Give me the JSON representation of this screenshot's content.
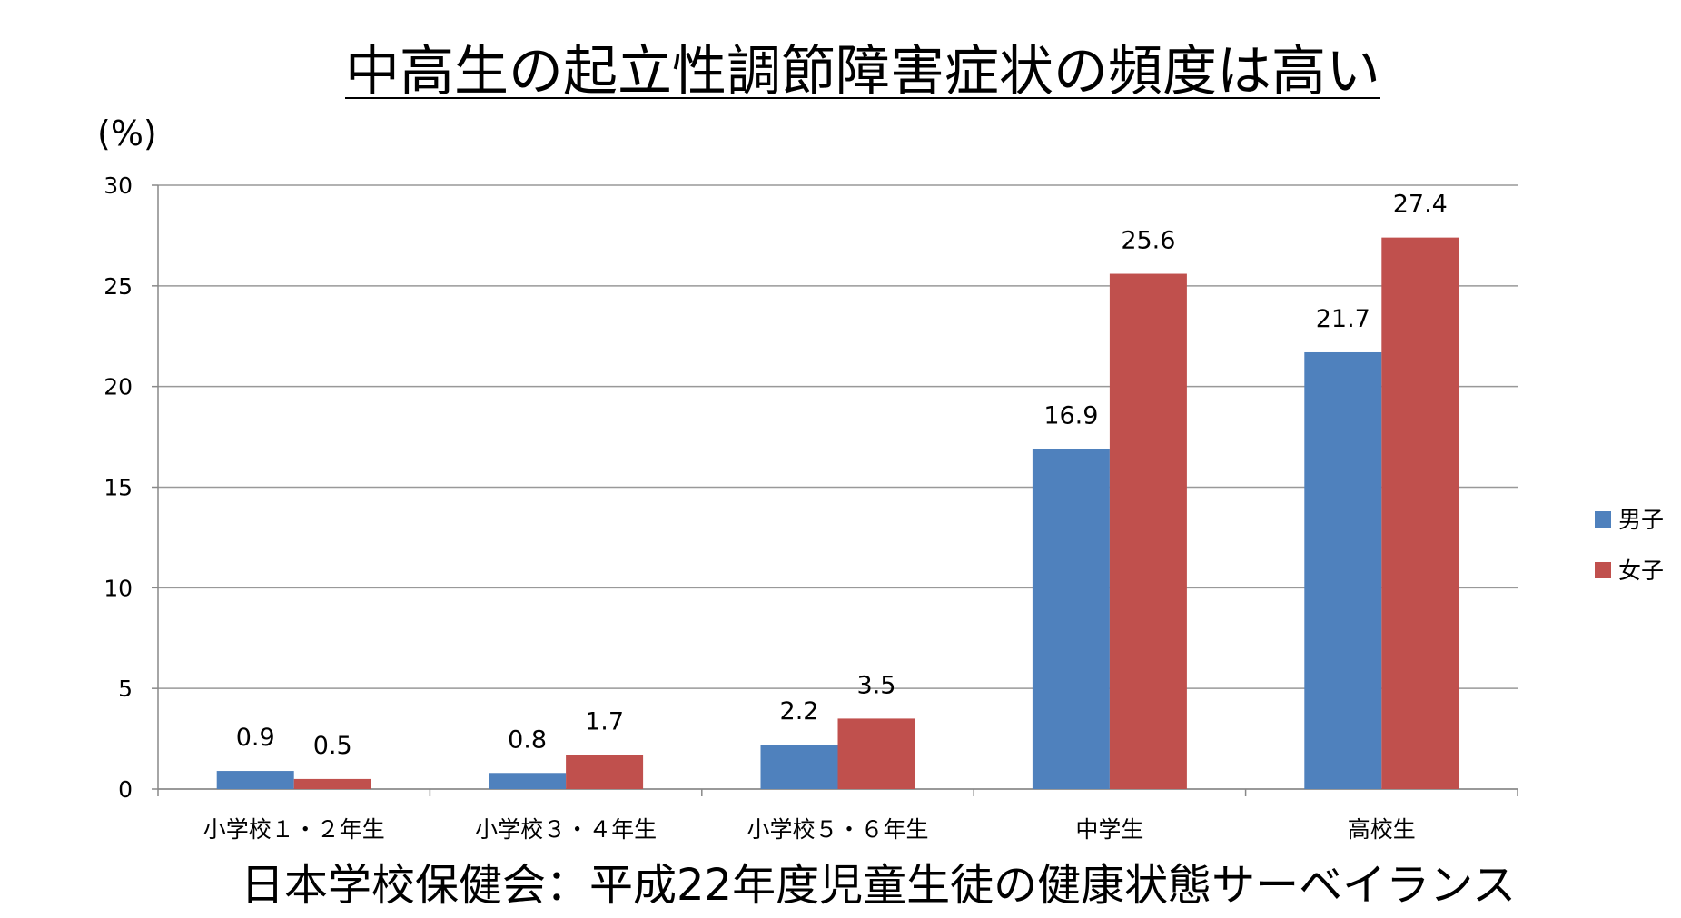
{
  "chart_data": {
    "type": "bar",
    "title": "中高生の起立性調節障害症状の頻度は高い",
    "ylabel": "(%)",
    "xlabel": "",
    "source": "日本学校保健会：平成22年度児童生徒の健康状態サーベイランス",
    "categories": [
      "小学校１・２年生",
      "小学校３・４年生",
      "小学校５・６年生",
      "中学生",
      "高校生"
    ],
    "series": [
      {
        "name": "男子",
        "color": "#4F81BD",
        "values": [
          0.9,
          0.8,
          2.2,
          16.9,
          21.7
        ]
      },
      {
        "name": "女子",
        "color": "#C0504D",
        "values": [
          0.5,
          1.7,
          3.5,
          25.6,
          27.4
        ]
      }
    ],
    "ylim": [
      0,
      30
    ],
    "yticks": [
      "0",
      "5",
      "10",
      "15",
      "20",
      "25",
      "30"
    ],
    "grid": true,
    "legend": "right"
  }
}
